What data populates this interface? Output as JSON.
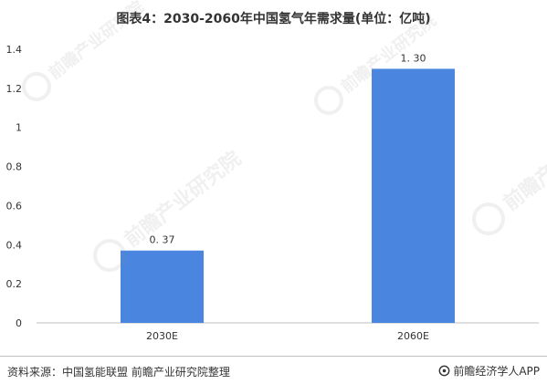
{
  "chart_data": {
    "type": "bar",
    "title": "图表4：2030-2060年中国氢气年需求量(单位：亿吨)",
    "categories": [
      "2030E",
      "2060E"
    ],
    "values": [
      0.37,
      1.3
    ],
    "data_labels": [
      "0. 37",
      "1. 30"
    ],
    "ylim": [
      0,
      1.4
    ],
    "yticks": [
      0,
      0.2,
      0.4,
      0.6,
      0.8,
      1,
      1.2,
      1.4
    ],
    "ytick_labels": [
      "0",
      "0.2",
      "0.4",
      "0.6",
      "0.8",
      "1",
      "1.2",
      "1.4"
    ],
    "grid": false,
    "bar_color": "#4a86e0"
  },
  "footer": {
    "source": "资料来源：中国氢能联盟 前瞻产业研究院整理",
    "brand": "前瞻经济学人APP",
    "brand_icon": "qianzhan-logo-icon"
  },
  "watermark": {
    "text": "前瞻产业研究院"
  }
}
